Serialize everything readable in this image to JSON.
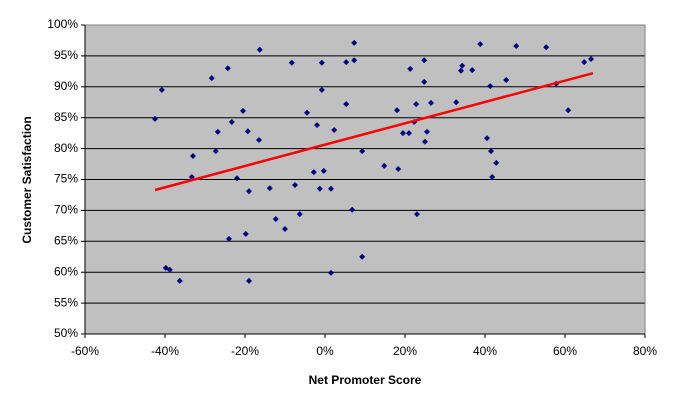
{
  "chart_data": {
    "type": "scatter",
    "x_label": "Net Promoter Score",
    "y_label": "Customer Satisfaction",
    "xlim": [
      -60,
      80
    ],
    "ylim": [
      50,
      100
    ],
    "xticks": [
      {
        "value": -60,
        "label": "-60%"
      },
      {
        "value": -40,
        "label": "-40%"
      },
      {
        "value": -20,
        "label": "-20%"
      },
      {
        "value": 0,
        "label": "0%"
      },
      {
        "value": 20,
        "label": "20%"
      },
      {
        "value": 40,
        "label": "40%"
      },
      {
        "value": 60,
        "label": "60%"
      },
      {
        "value": 80,
        "label": "80%"
      }
    ],
    "yticks": [
      {
        "value": 50,
        "label": "50%"
      },
      {
        "value": 55,
        "label": "55%"
      },
      {
        "value": 60,
        "label": "60%"
      },
      {
        "value": 65,
        "label": "65%"
      },
      {
        "value": 70,
        "label": "70%"
      },
      {
        "value": 75,
        "label": "75%"
      },
      {
        "value": 80,
        "label": "80%"
      },
      {
        "value": 85,
        "label": "85%"
      },
      {
        "value": 90,
        "label": "90%"
      },
      {
        "value": 95,
        "label": "95%"
      },
      {
        "value": 100,
        "label": "100%"
      }
    ],
    "grid": true,
    "plot_background": "#c0c0c0",
    "color": "#000080",
    "x": [
      -42.5,
      -40.8,
      -39.8,
      -38.8,
      -36.3,
      -33,
      -33.3,
      -28.3,
      -26.8,
      -27.3,
      -24.3,
      -23.3,
      -24,
      -22,
      -20.5,
      -19.8,
      -19.3,
      -19,
      -19,
      -16.5,
      -16.3,
      -13.8,
      -12.3,
      -10,
      -8.3,
      -7.5,
      -6.3,
      -4.5,
      -2.8,
      -2,
      -1.3,
      -0.8,
      -0.8,
      -0.3,
      1.5,
      1.5,
      2.3,
      5.3,
      5.3,
      6.8,
      7.3,
      7.3,
      9.3,
      9.3,
      14.8,
      18.3,
      18,
      19.5,
      21,
      21.3,
      22.3,
      22.8,
      23,
      24.8,
      24.8,
      25,
      25.5,
      26.5,
      32.8,
      34,
      34.3,
      36.8,
      38.8,
      40.5,
      41.3,
      41.5,
      41.8,
      42.8,
      45.3,
      47.8,
      55.3,
      57.8,
      60.8,
      64.8,
      66.5
    ],
    "y": [
      84.8,
      89.5,
      60.7,
      60.4,
      58.6,
      78.8,
      75.4,
      91.4,
      82.7,
      79.6,
      93.0,
      84.3,
      65.4,
      75.2,
      86.1,
      66.2,
      82.8,
      73.1,
      58.6,
      81.4,
      96.0,
      73.6,
      68.6,
      67.0,
      93.9,
      74.1,
      69.4,
      85.8,
      76.2,
      83.8,
      73.5,
      93.9,
      89.5,
      76.4,
      73.5,
      59.9,
      83.0,
      87.2,
      94.0,
      70.1,
      97.1,
      94.3,
      79.6,
      62.5,
      77.2,
      76.7,
      86.2,
      82.5,
      82.5,
      92.9,
      84.3,
      87.2,
      69.4,
      94.3,
      90.8,
      81.1,
      82.7,
      87.4,
      87.5,
      92.6,
      93.4,
      92.7,
      96.9,
      81.7,
      90.1,
      79.6,
      75.4,
      77.7,
      91.1,
      96.6,
      96.4,
      90.5,
      86.2,
      94.0,
      94.5
    ],
    "trendline": {
      "x": [
        -42.5,
        67
      ],
      "y": [
        73.3,
        92.2
      ],
      "color": "#ff0000"
    }
  }
}
